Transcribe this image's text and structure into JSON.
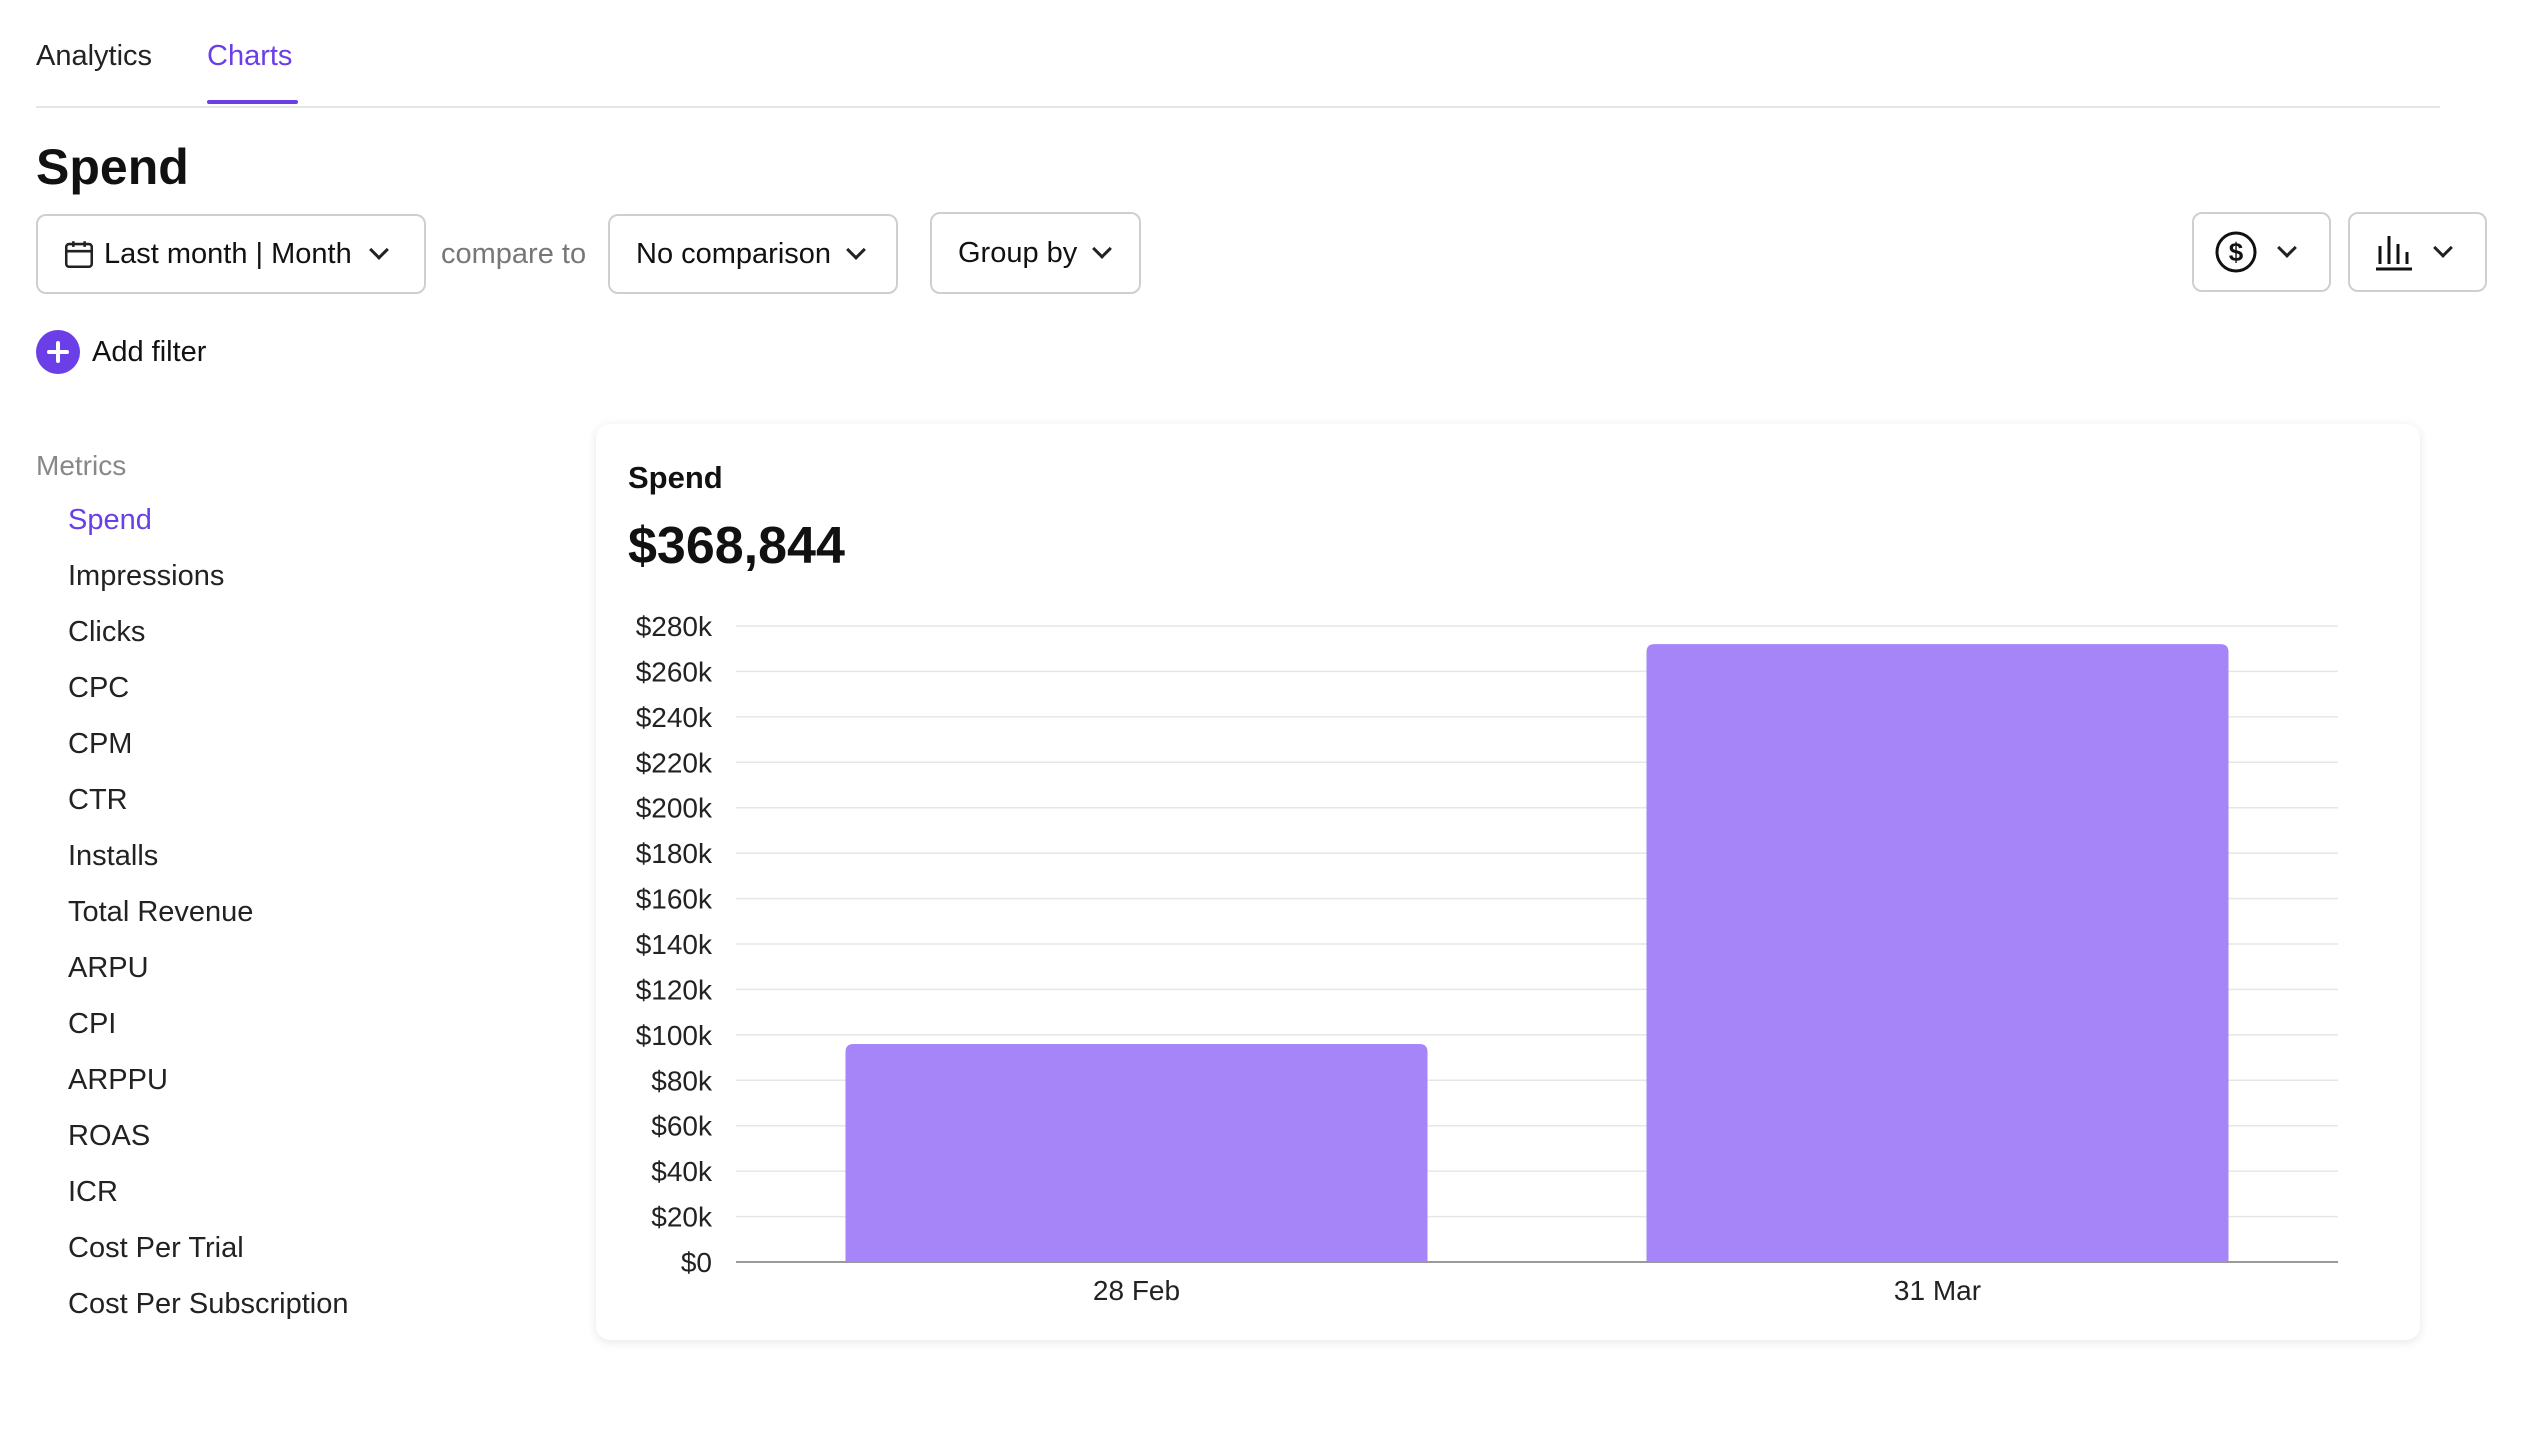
{
  "tabs": [
    {
      "label": "Analytics",
      "active": false
    },
    {
      "label": "Charts",
      "active": true
    }
  ],
  "page_title": "Spend",
  "toolbar": {
    "date_range_label": "Last month | Month",
    "compare_label": "compare to",
    "comparison_label": "No comparison",
    "group_by_label": "Group by",
    "currency_icon": "dollar-circle-icon",
    "chart_type_icon": "bar-chart-icon"
  },
  "filters": {
    "add_label": "Add filter"
  },
  "metrics": {
    "heading": "Metrics",
    "items": [
      "Spend",
      "Impressions",
      "Clicks",
      "CPC",
      "CPM",
      "CTR",
      "Installs",
      "Total Revenue",
      "ARPU",
      "CPI",
      "ARPPU",
      "ROAS",
      "ICR",
      "Cost Per Trial",
      "Cost Per Subscription"
    ],
    "active": "Spend"
  },
  "colors": {
    "accent": "#6b3fe8",
    "bar": "#a685f8"
  },
  "card": {
    "title": "Spend",
    "total": "$368,844"
  },
  "chart_data": {
    "type": "bar",
    "categories": [
      "28 Feb",
      "31 Mar"
    ],
    "values": [
      96000,
      272000
    ],
    "ylim": [
      0,
      280000
    ],
    "yticks": [
      "$0",
      "$20k",
      "$40k",
      "$60k",
      "$80k",
      "$100k",
      "$120k",
      "$140k",
      "$160k",
      "$180k",
      "$200k",
      "$220k",
      "$240k",
      "$260k",
      "$280k"
    ],
    "grid": true
  }
}
